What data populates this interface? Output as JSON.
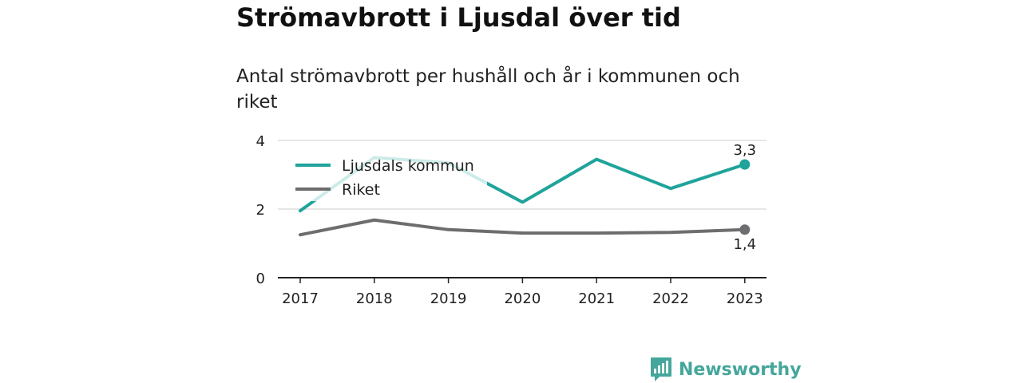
{
  "title": "Strömavbrott i Ljusdal över tid",
  "subtitle": "Antal strömavbrott per hushåll och år i kommunen och riket",
  "brand": {
    "name": "Newsworthy",
    "logo_icon": "bar-chart-speech-bubble-icon"
  },
  "colors": {
    "ljusdal": "#1fa39b",
    "riket": "#6d6d6f",
    "grid": "#dddddd",
    "axis": "#222222",
    "brand": "#45a69b"
  },
  "chart_data": {
    "type": "line",
    "title": "Strömavbrott i Ljusdal över tid",
    "subtitle": "Antal strömavbrott per hushåll och år i kommunen och riket",
    "xlabel": "",
    "ylabel": "",
    "categories": [
      "2017",
      "2018",
      "2019",
      "2020",
      "2021",
      "2022",
      "2023"
    ],
    "ylim": [
      0,
      4
    ],
    "yticks": [
      0,
      2,
      4
    ],
    "grid": true,
    "legend_position": "top-left",
    "series": [
      {
        "name": "Ljusdals kommun",
        "color": "#1fa39b",
        "values": [
          1.95,
          3.5,
          3.35,
          2.2,
          3.45,
          2.6,
          3.3
        ],
        "end_label": "3,3"
      },
      {
        "name": "Riket",
        "color": "#6d6d6f",
        "values": [
          1.25,
          1.68,
          1.4,
          1.3,
          1.3,
          1.32,
          1.4
        ],
        "end_label": "1,4"
      }
    ]
  }
}
